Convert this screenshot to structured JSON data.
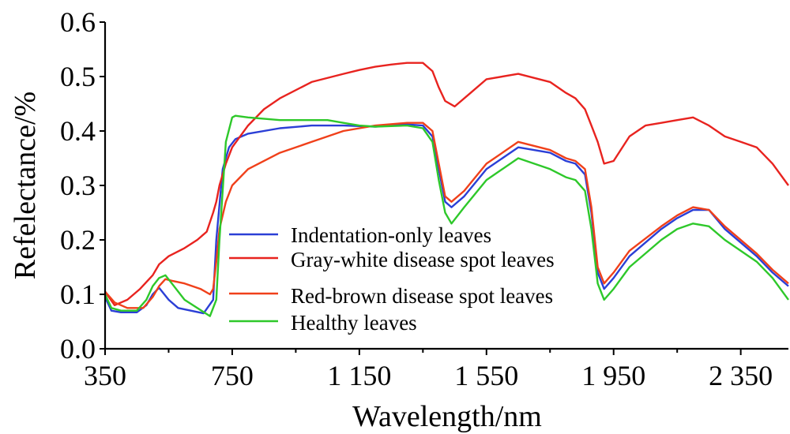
{
  "chart_data": {
    "type": "line",
    "title": "",
    "xlabel": "Wavelength/nm",
    "ylabel": "Refelectance/%",
    "xlim": [
      350,
      2500
    ],
    "ylim": [
      0,
      0.6
    ],
    "xticks": [
      {
        "value": 350,
        "label": "350"
      },
      {
        "value": 750,
        "label": "750"
      },
      {
        "value": 1150,
        "label": "1 150"
      },
      {
        "value": 1550,
        "label": "1 550"
      },
      {
        "value": 1950,
        "label": "1 950"
      },
      {
        "value": 2350,
        "label": "2 350"
      }
    ],
    "yticks": [
      {
        "value": 0.0,
        "label": "0.0"
      },
      {
        "value": 0.1,
        "label": "0.1"
      },
      {
        "value": 0.2,
        "label": "0.2"
      },
      {
        "value": 0.3,
        "label": "0.3"
      },
      {
        "value": 0.4,
        "label": "0.4"
      },
      {
        "value": 0.5,
        "label": "0.5"
      },
      {
        "value": 0.6,
        "label": "0.6"
      }
    ],
    "grid": false,
    "legend_position": "center",
    "series": [
      {
        "name": "Indentation-only leaves",
        "color": "#2b3fd6",
        "x": [
          350,
          370,
          400,
          450,
          480,
          500,
          520,
          550,
          580,
          620,
          660,
          690,
          700,
          720,
          740,
          760,
          800,
          900,
          1000,
          1100,
          1200,
          1300,
          1350,
          1380,
          1400,
          1420,
          1440,
          1480,
          1550,
          1650,
          1750,
          1800,
          1830,
          1860,
          1880,
          1900,
          1920,
          1950,
          2000,
          2100,
          2150,
          2200,
          2250,
          2300,
          2400,
          2450,
          2500
        ],
        "y": [
          0.095,
          0.07,
          0.067,
          0.067,
          0.08,
          0.1,
          0.112,
          0.09,
          0.075,
          0.07,
          0.065,
          0.09,
          0.2,
          0.33,
          0.37,
          0.385,
          0.395,
          0.405,
          0.41,
          0.41,
          0.408,
          0.412,
          0.41,
          0.39,
          0.33,
          0.27,
          0.26,
          0.28,
          0.33,
          0.37,
          0.36,
          0.345,
          0.34,
          0.32,
          0.25,
          0.14,
          0.11,
          0.13,
          0.17,
          0.22,
          0.24,
          0.255,
          0.255,
          0.22,
          0.17,
          0.14,
          0.115
        ]
      },
      {
        "name": "Gray-white disease spot leaves",
        "color": "#e8231f",
        "x": [
          350,
          380,
          420,
          460,
          500,
          520,
          550,
          600,
          640,
          670,
          690,
          700,
          710,
          730,
          750,
          800,
          850,
          900,
          1000,
          1100,
          1150,
          1200,
          1250,
          1300,
          1350,
          1380,
          1400,
          1420,
          1450,
          1500,
          1550,
          1650,
          1750,
          1800,
          1830,
          1860,
          1880,
          1900,
          1920,
          1950,
          2000,
          2050,
          2100,
          2150,
          2200,
          2250,
          2300,
          2350,
          2400,
          2450,
          2500
        ],
        "y": [
          0.105,
          0.08,
          0.09,
          0.11,
          0.135,
          0.155,
          0.17,
          0.185,
          0.2,
          0.215,
          0.25,
          0.27,
          0.3,
          0.34,
          0.37,
          0.41,
          0.44,
          0.46,
          0.49,
          0.505,
          0.512,
          0.518,
          0.522,
          0.525,
          0.525,
          0.51,
          0.48,
          0.455,
          0.445,
          0.47,
          0.495,
          0.505,
          0.49,
          0.47,
          0.46,
          0.44,
          0.41,
          0.38,
          0.34,
          0.345,
          0.39,
          0.41,
          0.415,
          0.42,
          0.425,
          0.41,
          0.39,
          0.38,
          0.37,
          0.34,
          0.3
        ]
      },
      {
        "name": "Red-brown disease spot leaves",
        "color": "#f0401a",
        "x": [
          350,
          380,
          420,
          470,
          500,
          520,
          540,
          560,
          600,
          650,
          680,
          690,
          700,
          710,
          730,
          750,
          800,
          900,
          1000,
          1100,
          1200,
          1300,
          1350,
          1380,
          1400,
          1420,
          1440,
          1480,
          1550,
          1650,
          1750,
          1800,
          1830,
          1860,
          1880,
          1900,
          1920,
          1950,
          2000,
          2100,
          2150,
          2200,
          2250,
          2300,
          2400,
          2450,
          2500
        ],
        "y": [
          0.105,
          0.085,
          0.075,
          0.075,
          0.095,
          0.115,
          0.128,
          0.125,
          0.12,
          0.11,
          0.1,
          0.11,
          0.16,
          0.22,
          0.27,
          0.3,
          0.33,
          0.36,
          0.38,
          0.4,
          0.41,
          0.415,
          0.415,
          0.4,
          0.34,
          0.28,
          0.27,
          0.29,
          0.34,
          0.38,
          0.365,
          0.35,
          0.345,
          0.33,
          0.26,
          0.15,
          0.12,
          0.14,
          0.18,
          0.225,
          0.245,
          0.26,
          0.255,
          0.225,
          0.175,
          0.145,
          0.12
        ]
      },
      {
        "name": "Healthy leaves",
        "color": "#2ec82a",
        "x": [
          350,
          370,
          400,
          450,
          480,
          500,
          520,
          540,
          560,
          600,
          640,
          680,
          700,
          710,
          730,
          750,
          760,
          800,
          900,
          1000,
          1050,
          1100,
          1150,
          1200,
          1300,
          1350,
          1380,
          1400,
          1420,
          1440,
          1480,
          1550,
          1650,
          1750,
          1800,
          1830,
          1860,
          1880,
          1900,
          1920,
          1950,
          2000,
          2100,
          2150,
          2200,
          2250,
          2300,
          2400,
          2450,
          2500
        ],
        "y": [
          0.1,
          0.075,
          0.07,
          0.07,
          0.09,
          0.115,
          0.13,
          0.135,
          0.12,
          0.09,
          0.075,
          0.06,
          0.09,
          0.2,
          0.38,
          0.425,
          0.428,
          0.425,
          0.42,
          0.42,
          0.42,
          0.415,
          0.41,
          0.408,
          0.41,
          0.405,
          0.38,
          0.31,
          0.25,
          0.23,
          0.26,
          0.31,
          0.35,
          0.33,
          0.315,
          0.31,
          0.29,
          0.22,
          0.12,
          0.09,
          0.11,
          0.15,
          0.2,
          0.22,
          0.23,
          0.225,
          0.2,
          0.16,
          0.13,
          0.09
        ]
      }
    ]
  }
}
